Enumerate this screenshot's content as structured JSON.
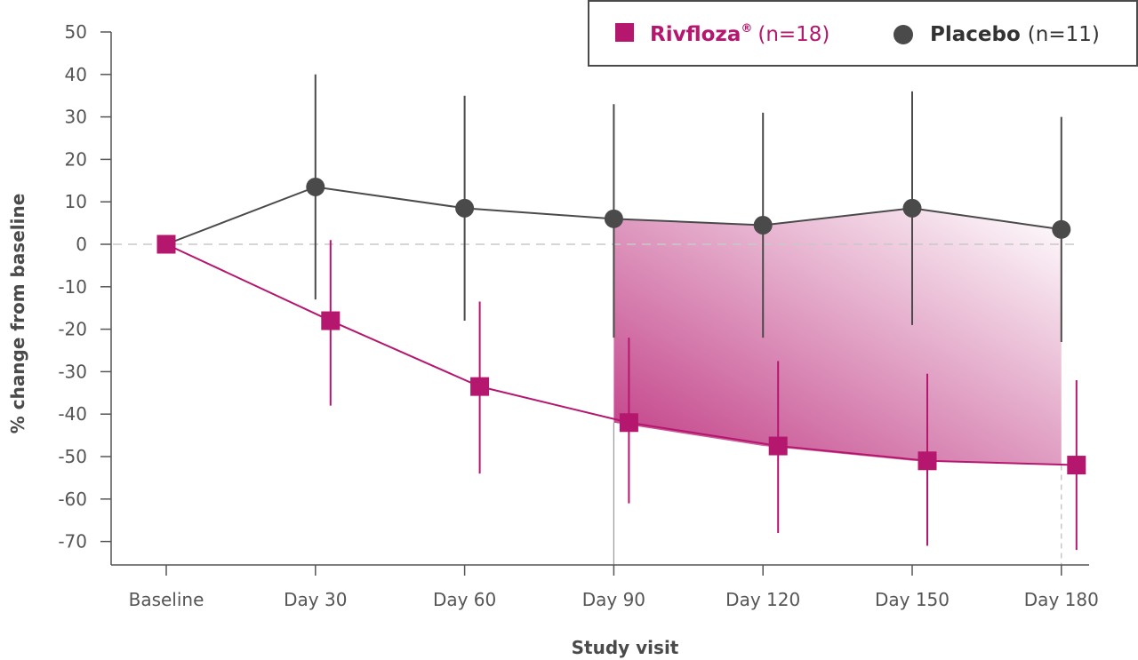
{
  "chart_data": {
    "type": "line",
    "xlabel": "Study visit",
    "ylabel": "% change from baseline",
    "categories": [
      "Baseline",
      "Day 30",
      "Day 60",
      "Day 90",
      "Day 120",
      "Day 150",
      "Day 180"
    ],
    "ylim": [
      -75,
      50
    ],
    "yticks": [
      50,
      40,
      30,
      20,
      10,
      0,
      -10,
      -20,
      -30,
      -40,
      -50,
      -60,
      -70
    ],
    "grid": false,
    "reference_line": 0,
    "legend_position": "top-right",
    "shaded_region": {
      "from": "Day 90",
      "to": "Day 180",
      "between": [
        "Placebo",
        "Rivfloza"
      ]
    },
    "series": [
      {
        "name": "Rivfloza",
        "name_suffix": "®",
        "n_label": "(n=18)",
        "marker": "square",
        "color": "#b5176e",
        "values": [
          0,
          -18,
          -33.5,
          -42,
          -47.5,
          -51,
          -52
        ],
        "error_low": [
          null,
          -38,
          -54,
          -61,
          -68,
          -71,
          -72
        ],
        "error_high": [
          null,
          1,
          -13.5,
          -22,
          -27.5,
          -30.5,
          -32
        ]
      },
      {
        "name": "Placebo",
        "n_label": "(n=11)",
        "marker": "circle",
        "color": "#4a4a4a",
        "values": [
          0,
          13.5,
          8.5,
          6,
          4.5,
          8.5,
          3.5
        ],
        "error_low": [
          null,
          -13,
          -18,
          -22,
          -22,
          -19,
          -23
        ],
        "error_high": [
          null,
          40,
          35,
          33,
          31,
          36,
          30
        ]
      }
    ]
  }
}
